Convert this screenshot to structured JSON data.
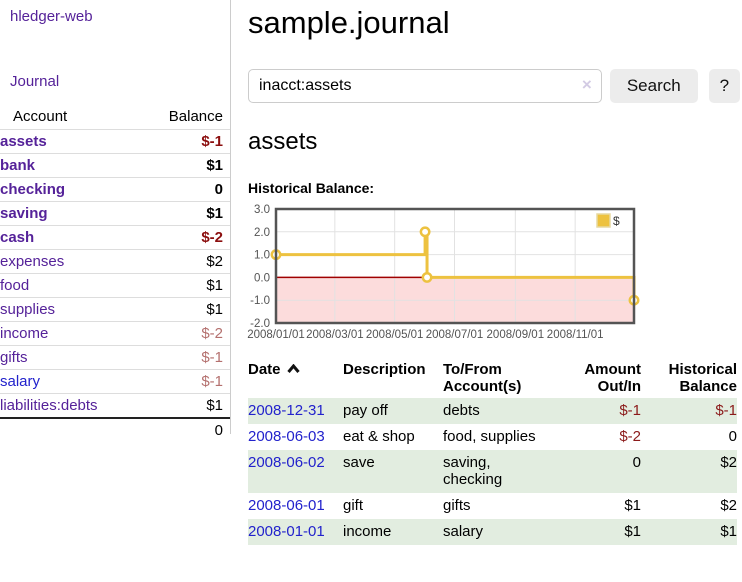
{
  "app": {
    "title": "hledger-web"
  },
  "sidebar": {
    "journal_link": "Journal",
    "accounts": {
      "headers": {
        "account": "Account",
        "balance": "Balance"
      },
      "rows": [
        {
          "name": "assets",
          "balance": "$-1"
        },
        {
          "name": "bank",
          "balance": "$1"
        },
        {
          "name": "checking",
          "balance": "0"
        },
        {
          "name": "saving",
          "balance": "$1"
        },
        {
          "name": "cash",
          "balance": "$-2"
        },
        {
          "name": "expenses",
          "balance": "$2"
        },
        {
          "name": "food",
          "balance": "$1"
        },
        {
          "name": "supplies",
          "balance": "$1"
        },
        {
          "name": "income",
          "balance": "$-2"
        },
        {
          "name": "gifts",
          "balance": "$-1"
        },
        {
          "name": "salary",
          "balance": "$-1"
        },
        {
          "name": "liabilities:debts",
          "balance": "$1"
        }
      ],
      "total": "0"
    }
  },
  "main": {
    "title": "sample.journal",
    "search": {
      "value": "inacct:assets",
      "clear_icon": "×",
      "button_label": "Search",
      "help_label": "?"
    },
    "account_heading": "assets",
    "chart_title": "Historical Balance:"
  },
  "chart_data": {
    "type": "line",
    "style": "step",
    "title": "Historical Balance:",
    "series": [
      {
        "name": "$",
        "color": "#EDC240",
        "points": [
          [
            "2008-01-01",
            1
          ],
          [
            "2008-06-01",
            2
          ],
          [
            "2008-06-03",
            0
          ],
          [
            "2008-12-31",
            -1
          ]
        ]
      }
    ],
    "x_range": [
      "2008-01-01",
      "2008-12-31"
    ],
    "ylim": [
      -2,
      3
    ],
    "y_ticks": [
      "3.0",
      "2.0",
      "1.0",
      "0.0",
      "-1.0",
      "-2.0"
    ],
    "x_ticks": [
      "2008/01/01",
      "2008/03/01",
      "2008/05/01",
      "2008/07/01",
      "2008/09/01",
      "2008/11/01"
    ],
    "legend_position": "top-right",
    "grid_on": true,
    "grid_color": "#e2e2e2",
    "border_color": "#545454",
    "negative_region_fill": "#fcdcdc",
    "zero_line_color": "#a00000",
    "tick_label_color": "#545454"
  },
  "register": {
    "headers": {
      "date": "Date",
      "description": "Description",
      "accounts": "To/From Account(s)",
      "amount": "Amount Out/In",
      "balance": "Historical Balance"
    },
    "rows": [
      {
        "date": "2008-12-31",
        "description": "pay off",
        "accounts": "debts",
        "amount": "$-1",
        "balance": "$-1"
      },
      {
        "date": "2008-06-03",
        "description": "eat & shop",
        "accounts": "food, supplies",
        "amount": "$-2",
        "balance": "0"
      },
      {
        "date": "2008-06-02",
        "description": "save",
        "accounts": "saving, checking",
        "amount": "0",
        "balance": "$2"
      },
      {
        "date": "2008-06-01",
        "description": "gift",
        "accounts": "gifts",
        "amount": "$1",
        "balance": "$2"
      },
      {
        "date": "2008-01-01",
        "description": "income",
        "accounts": "salary",
        "amount": "$1",
        "balance": "$1"
      }
    ]
  }
}
